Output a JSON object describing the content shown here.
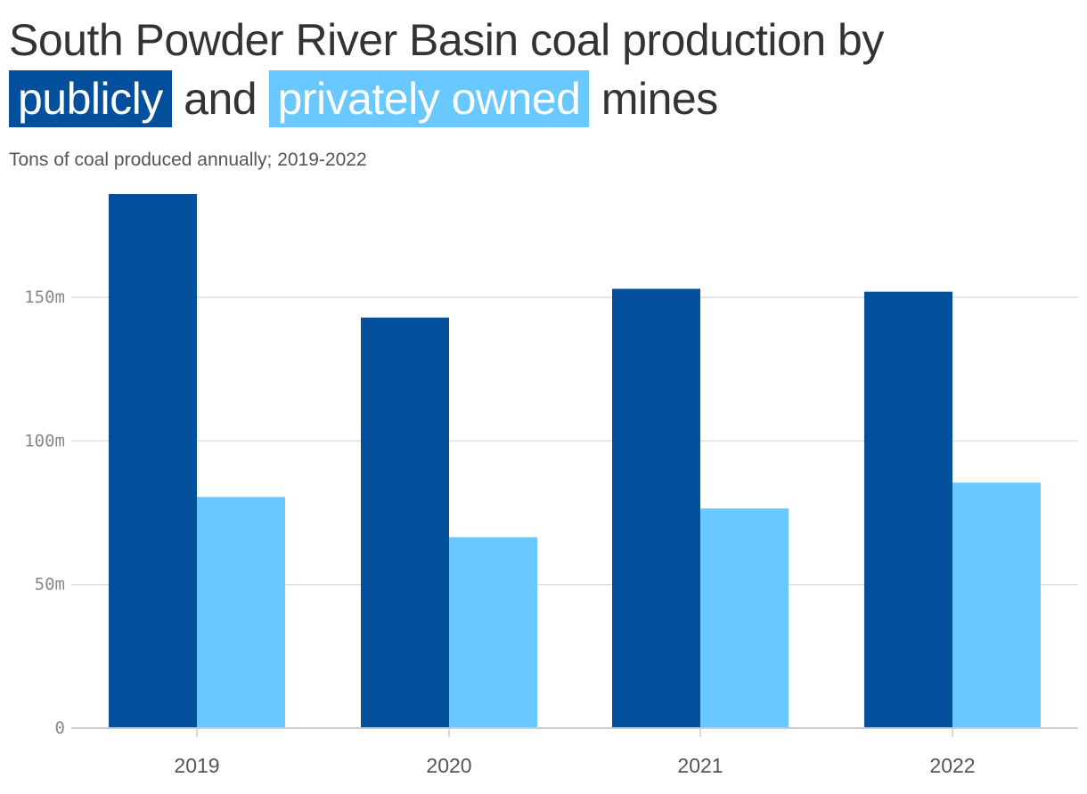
{
  "header": {
    "title_line1": "South Powder River Basin coal production by",
    "title_public": "publicly",
    "title_and": "and",
    "title_private": "privately owned",
    "title_end": "mines",
    "subtitle": "Tons of coal produced annually; 2019-2022"
  },
  "colors": {
    "public": "#04509d",
    "private": "#68c8ff",
    "grid": "#dddddd",
    "axis": "#cccccc"
  },
  "chart_data": {
    "type": "bar",
    "title": "South Powder River Basin coal production by publicly and privately owned mines",
    "subtitle": "Tons of coal produced annually; 2019-2022",
    "xlabel": "",
    "ylabel": "",
    "categories": [
      "2019",
      "2020",
      "2021",
      "2022"
    ],
    "series": [
      {
        "name": "publicly",
        "color": "#04509d",
        "values": [
          186,
          143,
          153,
          152
        ]
      },
      {
        "name": "privately owned",
        "color": "#68c8ff",
        "values": [
          80.5,
          66.5,
          76.5,
          85.5
        ]
      }
    ],
    "ylim": [
      0,
      186
    ],
    "yticks": [
      0,
      50,
      100,
      150
    ],
    "ytick_labels": [
      "0",
      "50m",
      "100m",
      "150m"
    ],
    "grid": true,
    "legend": "in title"
  }
}
